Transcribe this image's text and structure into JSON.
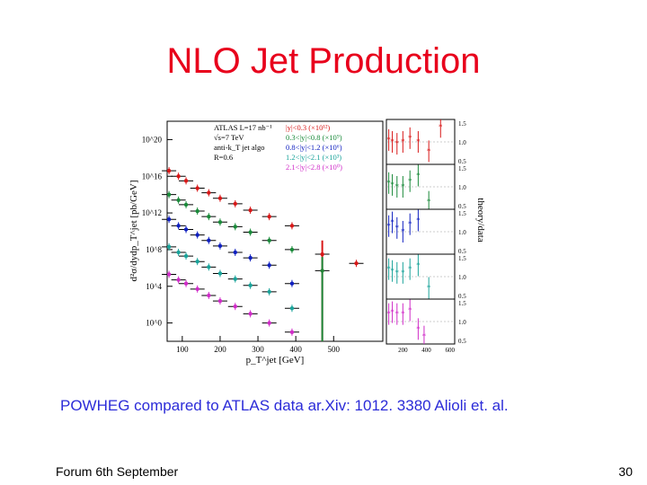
{
  "slide": {
    "title": "NLO Jet Production",
    "caption": "POWHEG compared to ATLAS data ar.Xiv: 1012. 3380 Alioli et. al.",
    "footer_left": "Forum 6th September",
    "page_number": "30"
  },
  "chart_data": [
    {
      "type": "scatter",
      "title": "",
      "xlabel": "p_T^jet [GeV]",
      "ylabel": "d²σ/dydp_T^jet [pb/GeV]",
      "x_ticks": [
        "100",
        "200",
        "300",
        "400",
        "500"
      ],
      "y_ticks": [
        "10^20",
        "10^16",
        "10^12",
        "10^8",
        "10^4",
        "10^0"
      ],
      "y_scale": "log",
      "ylim_log10": [
        -2,
        22
      ],
      "xlim": [
        60,
        630
      ],
      "legend_info": [
        "ATLAS L=17 nb⁻¹",
        "√s=7 TeV",
        "anti-k_T jet algo",
        "R=0.6"
      ],
      "legend_placement": "top-right",
      "series": [
        {
          "name": "|y|<0.3 (×10¹²)",
          "color": "#d81818",
          "points": [
            [
              65,
              16.6
            ],
            [
              90,
              16.0
            ],
            [
              110,
              15.5
            ],
            [
              140,
              14.7
            ],
            [
              170,
              14.2
            ],
            [
              200,
              13.6
            ],
            [
              240,
              13.0
            ],
            [
              280,
              12.3
            ],
            [
              330,
              11.6
            ],
            [
              390,
              10.6
            ],
            [
              470,
              7.5
            ],
            [
              560,
              6.5
            ]
          ]
        },
        {
          "name": "0.3<|y|<0.8 (×10⁹)",
          "color": "#1a8a3a",
          "points": [
            [
              65,
              14.0
            ],
            [
              90,
              13.4
            ],
            [
              110,
              12.9
            ],
            [
              140,
              12.2
            ],
            [
              170,
              11.6
            ],
            [
              200,
              11.0
            ],
            [
              240,
              10.5
            ],
            [
              280,
              9.9
            ],
            [
              330,
              9.0
            ],
            [
              390,
              8.0
            ],
            [
              470,
              5.7
            ]
          ]
        },
        {
          "name": "0.8<|y|<1.2 (×10⁶)",
          "color": "#1020c0",
          "points": [
            [
              65,
              11.3
            ],
            [
              90,
              10.6
            ],
            [
              110,
              10.2
            ],
            [
              140,
              9.6
            ],
            [
              170,
              9.0
            ],
            [
              200,
              8.4
            ],
            [
              240,
              7.7
            ],
            [
              280,
              7.1
            ],
            [
              330,
              6.3
            ],
            [
              390,
              4.3
            ]
          ]
        },
        {
          "name": "1.2<|y|<2.1 (×10³)",
          "color": "#1aa39a",
          "points": [
            [
              65,
              8.3
            ],
            [
              90,
              7.7
            ],
            [
              110,
              7.3
            ],
            [
              140,
              6.7
            ],
            [
              170,
              6.1
            ],
            [
              200,
              5.4
            ],
            [
              240,
              4.8
            ],
            [
              280,
              4.1
            ],
            [
              330,
              3.4
            ],
            [
              390,
              1.6
            ]
          ]
        },
        {
          "name": "2.1<|y|<2.8 (×10⁰)",
          "color": "#d02cc8",
          "points": [
            [
              65,
              5.3
            ],
            [
              90,
              4.7
            ],
            [
              110,
              4.3
            ],
            [
              140,
              3.7
            ],
            [
              170,
              3.0
            ],
            [
              200,
              2.4
            ],
            [
              240,
              1.8
            ],
            [
              280,
              1.0
            ],
            [
              330,
              0.0
            ],
            [
              390,
              -1.0
            ]
          ]
        }
      ]
    },
    {
      "type": "scatter",
      "title": "",
      "xlabel": "",
      "ylabel": "theory/data",
      "x_ticks": [
        "200",
        "400",
        "600"
      ],
      "xlim": [
        60,
        640
      ],
      "panel_y_ticks": [
        "1.5",
        "1.0",
        "0.5"
      ],
      "ylim": [
        0.4,
        1.6
      ],
      "panels": [
        {
          "series": "|y|<0.3 (×10¹²)",
          "color": "#d81818",
          "points": [
            [
              80,
              1.05
            ],
            [
              110,
              1.0
            ],
            [
              150,
              0.95
            ],
            [
              200,
              1.0
            ],
            [
              260,
              1.1
            ],
            [
              330,
              1.0
            ],
            [
              420,
              0.75
            ],
            [
              520,
              1.4
            ]
          ]
        },
        {
          "series": "0.3<|y|<0.8 (×10⁹)",
          "color": "#1a8a3a",
          "points": [
            [
              80,
              1.1
            ],
            [
              110,
              1.05
            ],
            [
              150,
              1.0
            ],
            [
              200,
              1.0
            ],
            [
              260,
              1.15
            ],
            [
              330,
              1.3
            ],
            [
              420,
              0.6
            ]
          ]
        },
        {
          "series": "0.8<|y|<1.2 (×10⁶)",
          "color": "#1020c0",
          "points": [
            [
              80,
              1.15
            ],
            [
              110,
              1.25
            ],
            [
              150,
              1.1
            ],
            [
              200,
              1.0
            ],
            [
              260,
              1.2
            ],
            [
              330,
              1.3
            ]
          ]
        },
        {
          "series": "1.2<|y|<2.1 (×10³)",
          "color": "#1aa39a",
          "points": [
            [
              80,
              1.2
            ],
            [
              110,
              1.15
            ],
            [
              150,
              1.1
            ],
            [
              200,
              1.1
            ],
            [
              260,
              1.2
            ],
            [
              330,
              1.3
            ],
            [
              420,
              0.7
            ]
          ]
        },
        {
          "series": "2.1<|y|<2.8 (×10⁰)",
          "color": "#d02cc8",
          "points": [
            [
              80,
              1.2
            ],
            [
              110,
              1.25
            ],
            [
              150,
              1.2
            ],
            [
              200,
              1.2
            ],
            [
              260,
              1.3
            ],
            [
              330,
              0.8
            ],
            [
              380,
              0.6
            ]
          ]
        }
      ]
    }
  ]
}
